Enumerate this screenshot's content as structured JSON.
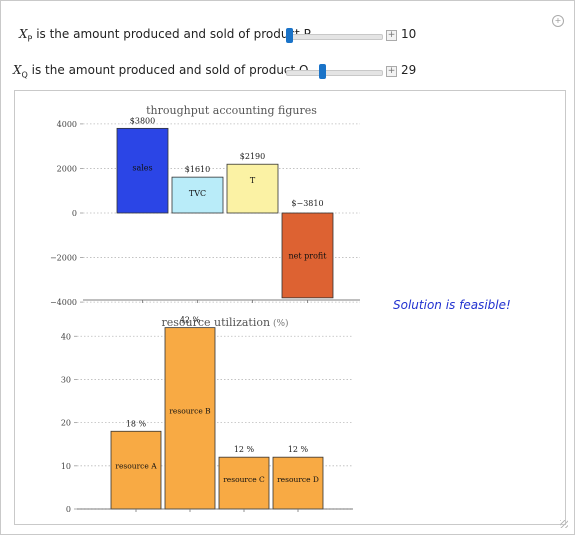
{
  "controls": [
    {
      "var": "X",
      "sub": "P",
      "label_rest": " is the amount produced and sold of product P",
      "value": "10",
      "fraction": 0.03
    },
    {
      "var": "X",
      "sub": "Q",
      "label_rest": " is the amount produced and sold of product Q",
      "value": "29",
      "fraction": 0.38
    }
  ],
  "status": "Solution is feasible!",
  "icons": {
    "gear": "gear-icon",
    "plus": "plus-icon",
    "grip": "resize-grip-icon"
  },
  "chart_data": [
    {
      "type": "bar",
      "title": "throughput accounting figures",
      "categories": [
        "sales",
        "TVC",
        "T",
        "net profit"
      ],
      "values": [
        3800,
        1610,
        2190,
        -3810
      ],
      "value_labels": [
        "$3800",
        "$1610",
        "$2190",
        "$−3810"
      ],
      "colors": [
        "#2b45e6",
        "#b9ecf9",
        "#fbf2a4",
        "#dd6232"
      ],
      "ylim": [
        -4400,
        4400
      ],
      "yticks": [
        -4000,
        -2000,
        0,
        2000,
        4000
      ],
      "ytick_labels": [
        "−4000",
        "−2000",
        "0",
        "2000",
        "4000"
      ],
      "grid": true
    },
    {
      "type": "bar",
      "title": "resource utilization",
      "title_unit": "(%)",
      "categories": [
        "resource A",
        "resource B",
        "resource C",
        "resource D"
      ],
      "values": [
        18,
        42,
        12,
        12
      ],
      "value_labels": [
        "18 %",
        "42 %",
        "12 %",
        "12 %"
      ],
      "colors": [
        "#f8aa44",
        "#f8aa44",
        "#f8aa44",
        "#f8aa44"
      ],
      "ylim": [
        0,
        44
      ],
      "yticks": [
        0,
        10,
        20,
        30,
        40
      ],
      "ytick_labels": [
        "0",
        "10",
        "20",
        "30",
        "40"
      ],
      "grid": true
    }
  ]
}
